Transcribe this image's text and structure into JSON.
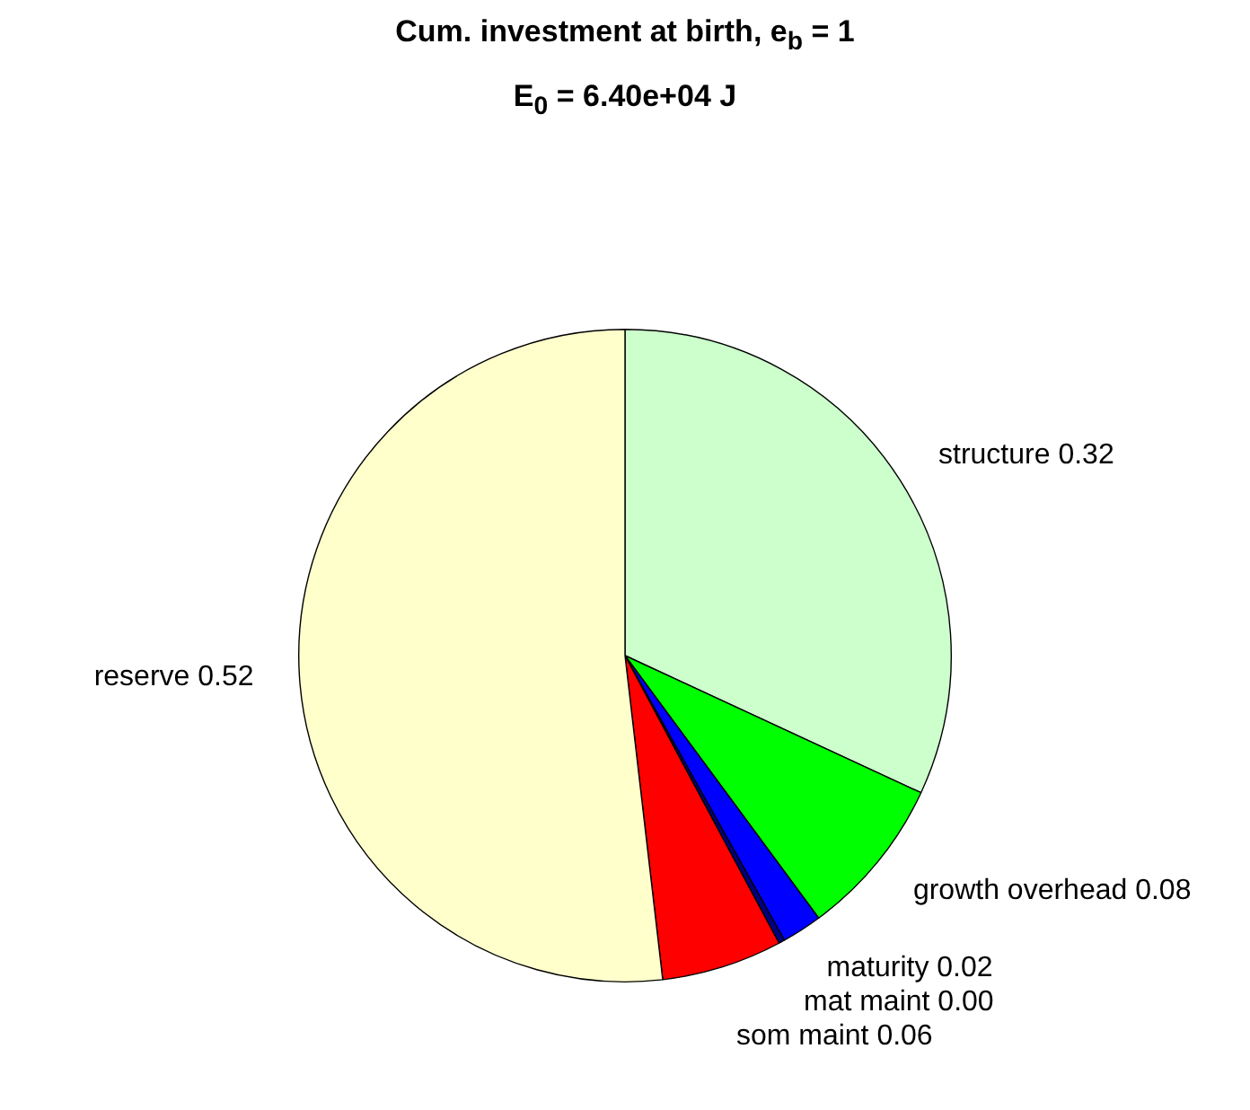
{
  "chart_data": {
    "type": "pie",
    "title": "Cum. investment at birth, e$_{b}$ = 1",
    "subtitle": "E$_{0}$ = 6.40e+04 J",
    "categories": [
      "structure",
      "growth overhead",
      "maturity",
      "mat maint",
      "som maint",
      "reserve"
    ],
    "values": [
      0.32,
      0.08,
      0.02,
      0.003,
      0.06,
      0.52
    ],
    "value_labels": [
      "0.32",
      "0.08",
      "0.02",
      "0.00",
      "0.06",
      "0.52"
    ],
    "colors": [
      "#ccffcc",
      "#00ff00",
      "#0000ff",
      "#000080",
      "#ff0000",
      "#ffffcc"
    ],
    "legend": false
  }
}
